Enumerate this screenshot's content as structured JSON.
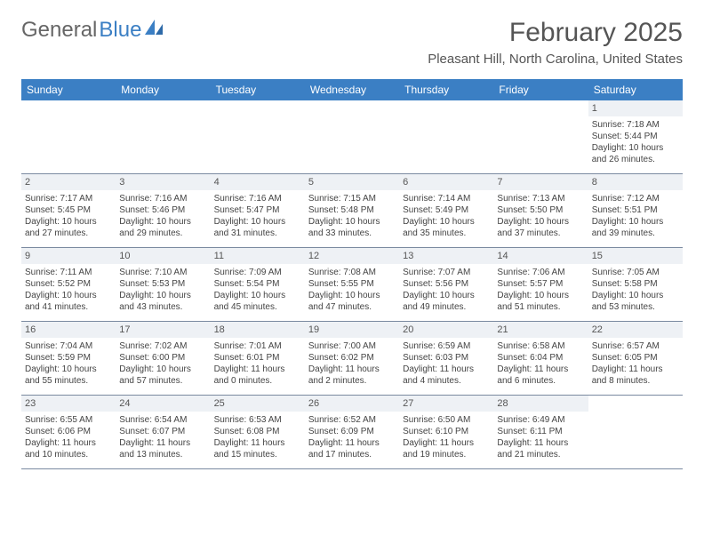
{
  "colors": {
    "header_bg": "#3b7fc4",
    "header_text": "#ffffff",
    "daynum_bg": "#eef1f5",
    "border": "#7a8aa0",
    "body_text": "#444444",
    "title_text": "#555555",
    "logo_gray": "#666666",
    "logo_blue": "#3b7fc4",
    "page_bg": "#ffffff"
  },
  "logo": {
    "word1": "General",
    "word2": "Blue"
  },
  "title": "February 2025",
  "location": "Pleasant Hill, North Carolina, United States",
  "weekdays": [
    "Sunday",
    "Monday",
    "Tuesday",
    "Wednesday",
    "Thursday",
    "Friday",
    "Saturday"
  ],
  "weeks": [
    [
      {
        "n": "",
        "sun": "",
        "set": "",
        "d1": "",
        "d2": ""
      },
      {
        "n": "",
        "sun": "",
        "set": "",
        "d1": "",
        "d2": ""
      },
      {
        "n": "",
        "sun": "",
        "set": "",
        "d1": "",
        "d2": ""
      },
      {
        "n": "",
        "sun": "",
        "set": "",
        "d1": "",
        "d2": ""
      },
      {
        "n": "",
        "sun": "",
        "set": "",
        "d1": "",
        "d2": ""
      },
      {
        "n": "",
        "sun": "",
        "set": "",
        "d1": "",
        "d2": ""
      },
      {
        "n": "1",
        "sun": "Sunrise: 7:18 AM",
        "set": "Sunset: 5:44 PM",
        "d1": "Daylight: 10 hours",
        "d2": "and 26 minutes."
      }
    ],
    [
      {
        "n": "2",
        "sun": "Sunrise: 7:17 AM",
        "set": "Sunset: 5:45 PM",
        "d1": "Daylight: 10 hours",
        "d2": "and 27 minutes."
      },
      {
        "n": "3",
        "sun": "Sunrise: 7:16 AM",
        "set": "Sunset: 5:46 PM",
        "d1": "Daylight: 10 hours",
        "d2": "and 29 minutes."
      },
      {
        "n": "4",
        "sun": "Sunrise: 7:16 AM",
        "set": "Sunset: 5:47 PM",
        "d1": "Daylight: 10 hours",
        "d2": "and 31 minutes."
      },
      {
        "n": "5",
        "sun": "Sunrise: 7:15 AM",
        "set": "Sunset: 5:48 PM",
        "d1": "Daylight: 10 hours",
        "d2": "and 33 minutes."
      },
      {
        "n": "6",
        "sun": "Sunrise: 7:14 AM",
        "set": "Sunset: 5:49 PM",
        "d1": "Daylight: 10 hours",
        "d2": "and 35 minutes."
      },
      {
        "n": "7",
        "sun": "Sunrise: 7:13 AM",
        "set": "Sunset: 5:50 PM",
        "d1": "Daylight: 10 hours",
        "d2": "and 37 minutes."
      },
      {
        "n": "8",
        "sun": "Sunrise: 7:12 AM",
        "set": "Sunset: 5:51 PM",
        "d1": "Daylight: 10 hours",
        "d2": "and 39 minutes."
      }
    ],
    [
      {
        "n": "9",
        "sun": "Sunrise: 7:11 AM",
        "set": "Sunset: 5:52 PM",
        "d1": "Daylight: 10 hours",
        "d2": "and 41 minutes."
      },
      {
        "n": "10",
        "sun": "Sunrise: 7:10 AM",
        "set": "Sunset: 5:53 PM",
        "d1": "Daylight: 10 hours",
        "d2": "and 43 minutes."
      },
      {
        "n": "11",
        "sun": "Sunrise: 7:09 AM",
        "set": "Sunset: 5:54 PM",
        "d1": "Daylight: 10 hours",
        "d2": "and 45 minutes."
      },
      {
        "n": "12",
        "sun": "Sunrise: 7:08 AM",
        "set": "Sunset: 5:55 PM",
        "d1": "Daylight: 10 hours",
        "d2": "and 47 minutes."
      },
      {
        "n": "13",
        "sun": "Sunrise: 7:07 AM",
        "set": "Sunset: 5:56 PM",
        "d1": "Daylight: 10 hours",
        "d2": "and 49 minutes."
      },
      {
        "n": "14",
        "sun": "Sunrise: 7:06 AM",
        "set": "Sunset: 5:57 PM",
        "d1": "Daylight: 10 hours",
        "d2": "and 51 minutes."
      },
      {
        "n": "15",
        "sun": "Sunrise: 7:05 AM",
        "set": "Sunset: 5:58 PM",
        "d1": "Daylight: 10 hours",
        "d2": "and 53 minutes."
      }
    ],
    [
      {
        "n": "16",
        "sun": "Sunrise: 7:04 AM",
        "set": "Sunset: 5:59 PM",
        "d1": "Daylight: 10 hours",
        "d2": "and 55 minutes."
      },
      {
        "n": "17",
        "sun": "Sunrise: 7:02 AM",
        "set": "Sunset: 6:00 PM",
        "d1": "Daylight: 10 hours",
        "d2": "and 57 minutes."
      },
      {
        "n": "18",
        "sun": "Sunrise: 7:01 AM",
        "set": "Sunset: 6:01 PM",
        "d1": "Daylight: 11 hours",
        "d2": "and 0 minutes."
      },
      {
        "n": "19",
        "sun": "Sunrise: 7:00 AM",
        "set": "Sunset: 6:02 PM",
        "d1": "Daylight: 11 hours",
        "d2": "and 2 minutes."
      },
      {
        "n": "20",
        "sun": "Sunrise: 6:59 AM",
        "set": "Sunset: 6:03 PM",
        "d1": "Daylight: 11 hours",
        "d2": "and 4 minutes."
      },
      {
        "n": "21",
        "sun": "Sunrise: 6:58 AM",
        "set": "Sunset: 6:04 PM",
        "d1": "Daylight: 11 hours",
        "d2": "and 6 minutes."
      },
      {
        "n": "22",
        "sun": "Sunrise: 6:57 AM",
        "set": "Sunset: 6:05 PM",
        "d1": "Daylight: 11 hours",
        "d2": "and 8 minutes."
      }
    ],
    [
      {
        "n": "23",
        "sun": "Sunrise: 6:55 AM",
        "set": "Sunset: 6:06 PM",
        "d1": "Daylight: 11 hours",
        "d2": "and 10 minutes."
      },
      {
        "n": "24",
        "sun": "Sunrise: 6:54 AM",
        "set": "Sunset: 6:07 PM",
        "d1": "Daylight: 11 hours",
        "d2": "and 13 minutes."
      },
      {
        "n": "25",
        "sun": "Sunrise: 6:53 AM",
        "set": "Sunset: 6:08 PM",
        "d1": "Daylight: 11 hours",
        "d2": "and 15 minutes."
      },
      {
        "n": "26",
        "sun": "Sunrise: 6:52 AM",
        "set": "Sunset: 6:09 PM",
        "d1": "Daylight: 11 hours",
        "d2": "and 17 minutes."
      },
      {
        "n": "27",
        "sun": "Sunrise: 6:50 AM",
        "set": "Sunset: 6:10 PM",
        "d1": "Daylight: 11 hours",
        "d2": "and 19 minutes."
      },
      {
        "n": "28",
        "sun": "Sunrise: 6:49 AM",
        "set": "Sunset: 6:11 PM",
        "d1": "Daylight: 11 hours",
        "d2": "and 21 minutes."
      },
      {
        "n": "",
        "sun": "",
        "set": "",
        "d1": "",
        "d2": ""
      }
    ]
  ]
}
